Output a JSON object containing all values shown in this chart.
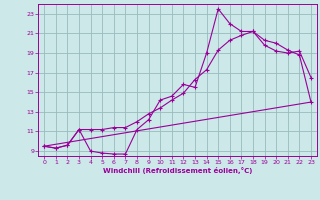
{
  "xlabel": "Windchill (Refroidissement éolien,°C)",
  "bg_color": "#cce8e8",
  "grid_color": "#99bbbb",
  "line_color": "#990099",
  "xlim": [
    -0.5,
    23.5
  ],
  "ylim": [
    8.5,
    24.0
  ],
  "yticks": [
    9,
    11,
    13,
    15,
    17,
    19,
    21,
    23
  ],
  "xticks": [
    0,
    1,
    2,
    3,
    4,
    5,
    6,
    7,
    8,
    9,
    10,
    11,
    12,
    13,
    14,
    15,
    16,
    17,
    18,
    19,
    20,
    21,
    22,
    23
  ],
  "line1_x": [
    0,
    1,
    2,
    3,
    4,
    5,
    6,
    7,
    8,
    9,
    10,
    11,
    12,
    13,
    14,
    15,
    16,
    17,
    18,
    19,
    20,
    21,
    22,
    23
  ],
  "line1_y": [
    9.5,
    9.3,
    9.6,
    11.2,
    9.0,
    8.8,
    8.7,
    8.7,
    11.2,
    12.2,
    14.2,
    14.6,
    15.8,
    15.5,
    19.0,
    23.5,
    22.0,
    21.2,
    21.2,
    19.8,
    19.2,
    19.0,
    19.2,
    16.5
  ],
  "line2_x": [
    0,
    1,
    2,
    3,
    4,
    5,
    6,
    7,
    8,
    9,
    10,
    11,
    12,
    13,
    14,
    15,
    16,
    17,
    18,
    19,
    20,
    21,
    22,
    23
  ],
  "line2_y": [
    9.5,
    9.3,
    9.6,
    11.2,
    11.2,
    11.2,
    11.4,
    11.4,
    12.0,
    12.8,
    13.4,
    14.2,
    14.9,
    16.3,
    17.3,
    19.3,
    20.3,
    20.8,
    21.2,
    20.3,
    20.0,
    19.3,
    18.8,
    14.0
  ],
  "line3_x": [
    0,
    23
  ],
  "line3_y": [
    9.5,
    14.0
  ]
}
